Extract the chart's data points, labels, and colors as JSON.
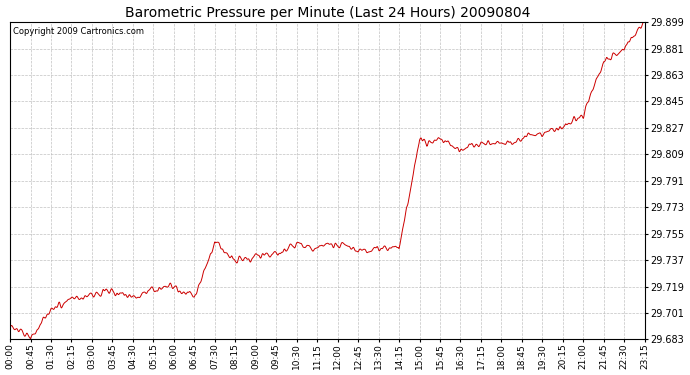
{
  "title": "Barometric Pressure per Minute (Last 24 Hours) 20090804",
  "copyright": "Copyright 2009 Cartronics.com",
  "line_color": "#cc0000",
  "bg_color": "#ffffff",
  "grid_color": "#bbbbbb",
  "y_min": 29.683,
  "y_max": 29.899,
  "y_ticks": [
    29.683,
    29.701,
    29.719,
    29.737,
    29.755,
    29.773,
    29.791,
    29.809,
    29.827,
    29.845,
    29.863,
    29.881,
    29.899
  ],
  "x_tick_labels": [
    "00:00",
    "00:45",
    "01:30",
    "02:15",
    "03:00",
    "03:45",
    "04:30",
    "05:15",
    "06:00",
    "06:45",
    "07:30",
    "08:15",
    "09:00",
    "09:45",
    "10:30",
    "11:15",
    "12:00",
    "12:45",
    "13:30",
    "14:15",
    "15:00",
    "15:45",
    "16:30",
    "17:15",
    "18:00",
    "18:45",
    "19:30",
    "20:15",
    "21:00",
    "21:45",
    "22:30",
    "23:15"
  ],
  "key_times_minutes": [
    0,
    45,
    90,
    135,
    180,
    225,
    270,
    315,
    360,
    405,
    450,
    495,
    540,
    585,
    630,
    675,
    720,
    765,
    810,
    855,
    900,
    945,
    990,
    1035,
    1080,
    1125,
    1170,
    1215,
    1260,
    1305,
    1350,
    1395
  ],
  "key_values": [
    29.692,
    29.684,
    29.703,
    29.71,
    29.713,
    29.716,
    29.712,
    29.717,
    29.719,
    29.712,
    29.749,
    29.737,
    29.74,
    29.74,
    29.748,
    29.746,
    29.748,
    29.743,
    29.745,
    29.745,
    29.817,
    29.819,
    29.812,
    29.816,
    29.816,
    29.82,
    29.824,
    29.828,
    29.835,
    29.873,
    29.881,
    29.899
  ]
}
